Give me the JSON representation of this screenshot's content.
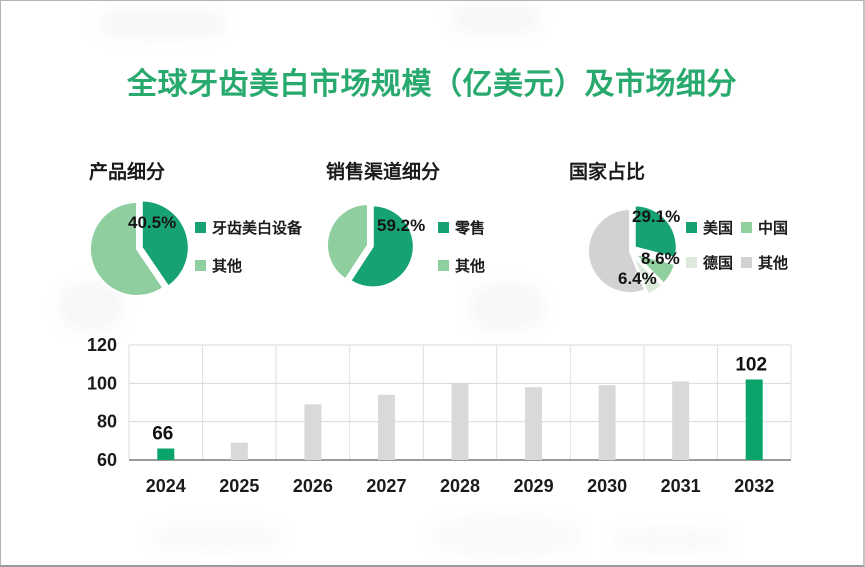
{
  "title": "全球牙齿美白市场规模（亿美元）及市场细分",
  "colors": {
    "title_green": "#28a96e",
    "pie_dark_green": "#17a371",
    "pie_light_green": "#8fce9e",
    "pie_pale_green": "#dcebd9",
    "pie_gray": "#d2d2d2",
    "bar_gray": "#d9d9d9",
    "bar_green": "#0ba56c",
    "text": "#1b1b1b"
  },
  "pies": [
    {
      "heading": "产品细分",
      "slices": [
        {
          "label": "牙齿美白设备",
          "pct": 40.5,
          "color": "#17a371",
          "callout": "40.5%"
        },
        {
          "label": "其他",
          "pct": 59.5,
          "color": "#8fce9e",
          "callout": ""
        }
      ]
    },
    {
      "heading": "销售渠道细分",
      "slices": [
        {
          "label": "零售",
          "pct": 59.2,
          "color": "#17a371",
          "callout": "59.2%"
        },
        {
          "label": "其他",
          "pct": 40.8,
          "color": "#8fce9e",
          "callout": ""
        }
      ]
    },
    {
      "heading": "国家占比",
      "slices": [
        {
          "label": "美国",
          "pct": 29.1,
          "color": "#17a371",
          "callout": "29.1%"
        },
        {
          "label": "中国",
          "pct": 8.6,
          "color": "#8fd09e",
          "callout": "8.6%"
        },
        {
          "label": "德国",
          "pct": 6.4,
          "color": "#dcebd9",
          "callout": "6.4%"
        },
        {
          "label": "其他",
          "pct": 55.9,
          "color": "#d2d2d2",
          "callout": ""
        }
      ]
    }
  ],
  "chart_data": {
    "type": "bar",
    "title": "全球牙齿美白市场规模（亿美元）",
    "categories": [
      "2024",
      "2025",
      "2026",
      "2027",
      "2028",
      "2029",
      "2030",
      "2031",
      "2032"
    ],
    "values": [
      66,
      69,
      89,
      94,
      100,
      98,
      99,
      101,
      102
    ],
    "data_labels": [
      "66",
      "",
      "",
      "",
      "",
      "",
      "",
      "",
      "102"
    ],
    "highlight_indices": [
      0,
      8
    ],
    "bar_color": "#d9d9d9",
    "highlight_color": "#0ba56c",
    "xlabel": "",
    "ylabel": "",
    "ylim": [
      60,
      120
    ],
    "yticks": [
      60,
      80,
      100,
      120
    ],
    "grid": true,
    "legend_position": "none"
  }
}
